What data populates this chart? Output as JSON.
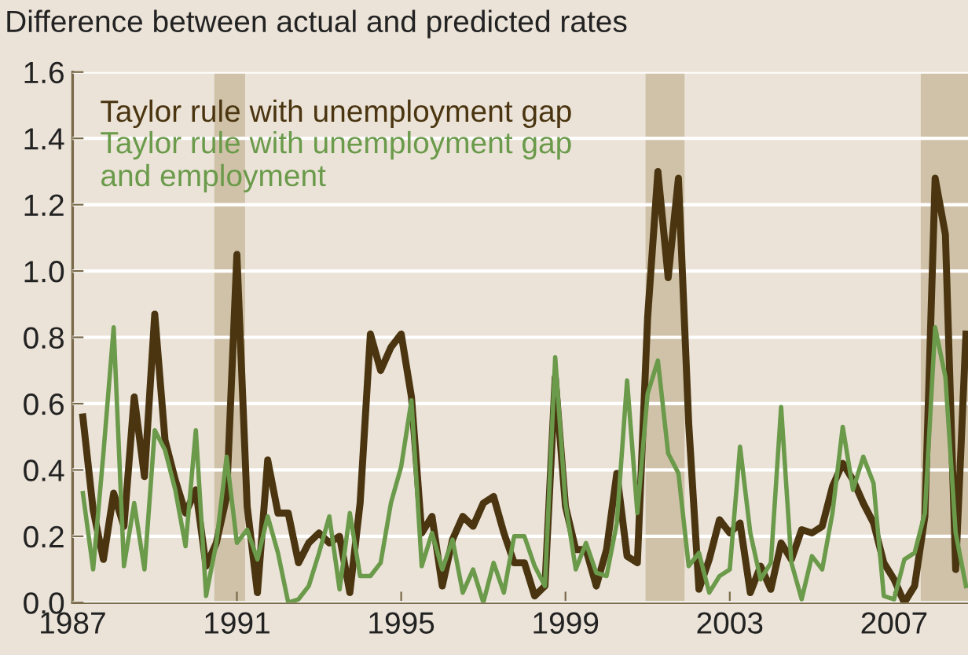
{
  "chart_data": {
    "type": "line",
    "title": "Difference between actual and predicted rates",
    "x": [
      1987.25,
      1987.5,
      1987.75,
      1988,
      1988.25,
      1988.5,
      1988.75,
      1989,
      1989.25,
      1989.5,
      1989.75,
      1990,
      1990.25,
      1990.5,
      1990.75,
      1991,
      1991.25,
      1991.5,
      1991.75,
      1992,
      1992.25,
      1992.5,
      1992.75,
      1993,
      1993.25,
      1993.5,
      1993.75,
      1994,
      1994.25,
      1994.5,
      1994.75,
      1995,
      1995.25,
      1995.5,
      1995.75,
      1996,
      1996.25,
      1996.5,
      1996.75,
      1997,
      1997.25,
      1997.5,
      1997.75,
      1998,
      1998.25,
      1998.5,
      1998.75,
      1999,
      1999.25,
      1999.5,
      1999.75,
      2000,
      2000.25,
      2000.5,
      2000.75,
      2001,
      2001.25,
      2001.5,
      2001.75,
      2002,
      2002.25,
      2002.5,
      2002.75,
      2003,
      2003.25,
      2003.5,
      2003.75,
      2004,
      2004.25,
      2004.5,
      2004.75,
      2005,
      2005.25,
      2005.5,
      2005.75,
      2006,
      2006.25,
      2006.5,
      2006.75,
      2007,
      2007.25,
      2007.5,
      2007.75,
      2008,
      2008.25,
      2008.5,
      2008.75
    ],
    "series": [
      {
        "name": "Taylor rule with unemployment gap",
        "color": "#4a3510",
        "values": [
          0.56,
          0.28,
          0.13,
          0.33,
          0.23,
          0.62,
          0.38,
          0.87,
          0.49,
          0.37,
          0.27,
          0.34,
          0.11,
          0.18,
          0.32,
          1.05,
          0.29,
          0.03,
          0.43,
          0.27,
          0.27,
          0.12,
          0.18,
          0.21,
          0.18,
          0.2,
          0.03,
          0.3,
          0.81,
          0.7,
          0.77,
          0.81,
          0.62,
          0.21,
          0.26,
          0.05,
          0.19,
          0.26,
          0.23,
          0.3,
          0.32,
          0.21,
          0.12,
          0.12,
          0.02,
          0.05,
          0.68,
          0.29,
          0.16,
          0.16,
          0.05,
          0.16,
          0.39,
          0.14,
          0.12,
          0.86,
          1.3,
          0.98,
          1.28,
          0.54,
          0.04,
          0.13,
          0.25,
          0.21,
          0.24,
          0.03,
          0.11,
          0.04,
          0.18,
          0.13,
          0.22,
          0.21,
          0.23,
          0.35,
          0.42,
          0.37,
          0.3,
          0.24,
          0.12,
          0.07,
          0.0,
          0.05,
          0.26,
          1.28,
          1.11,
          0.1,
          0.81
        ]
      },
      {
        "name": "Taylor rule with unemployment gap\nand employment",
        "color": "#6a9a4a",
        "values": [
          0.33,
          0.1,
          0.45,
          0.83,
          0.11,
          0.3,
          0.1,
          0.52,
          0.46,
          0.34,
          0.17,
          0.52,
          0.02,
          0.18,
          0.44,
          0.18,
          0.22,
          0.13,
          0.26,
          0.15,
          0.0,
          0.01,
          0.05,
          0.15,
          0.26,
          0.04,
          0.27,
          0.08,
          0.08,
          0.12,
          0.3,
          0.41,
          0.61,
          0.11,
          0.21,
          0.1,
          0.19,
          0.03,
          0.1,
          0.0,
          0.12,
          0.03,
          0.2,
          0.2,
          0.11,
          0.05,
          0.74,
          0.3,
          0.1,
          0.18,
          0.09,
          0.08,
          0.24,
          0.67,
          0.27,
          0.63,
          0.73,
          0.45,
          0.39,
          0.11,
          0.15,
          0.03,
          0.08,
          0.1,
          0.47,
          0.21,
          0.07,
          0.12,
          0.59,
          0.12,
          0.01,
          0.14,
          0.1,
          0.27,
          0.53,
          0.34,
          0.44,
          0.36,
          0.02,
          0.01,
          0.13,
          0.15,
          0.27,
          0.83,
          0.68,
          0.21,
          0.05
        ]
      }
    ],
    "xlim": [
      1987,
      2008.8
    ],
    "xticks": [
      1987,
      1991,
      1995,
      1999,
      2003,
      2007
    ],
    "ylim": [
      0,
      1.6
    ],
    "yticks": [
      {
        "value": 0,
        "label": "0.0"
      },
      {
        "value": 0.2,
        "label": "0.2"
      },
      {
        "value": 0.4,
        "label": "0.4"
      },
      {
        "value": 0.6,
        "label": "0.6"
      },
      {
        "value": 0.8,
        "label": "0.8"
      },
      {
        "value": 1.0,
        "label": "1.0"
      },
      {
        "value": 1.2,
        "label": "1.2"
      },
      {
        "value": 1.4,
        "label": "1.4"
      },
      {
        "value": 1.6,
        "label": "1.6"
      }
    ],
    "bands": [
      {
        "axis": "x",
        "from": 1990.45,
        "to": 1991.2,
        "color": "#d0c2a8"
      },
      {
        "axis": "x",
        "from": 2000.95,
        "to": 2001.9,
        "color": "#d0c2a8"
      },
      {
        "axis": "x",
        "from": 2007.65,
        "to": 2008.8,
        "color": "#d0c2a8"
      }
    ],
    "grid": "y",
    "legend": "top left",
    "marker": "none",
    "line_style": "solid"
  }
}
